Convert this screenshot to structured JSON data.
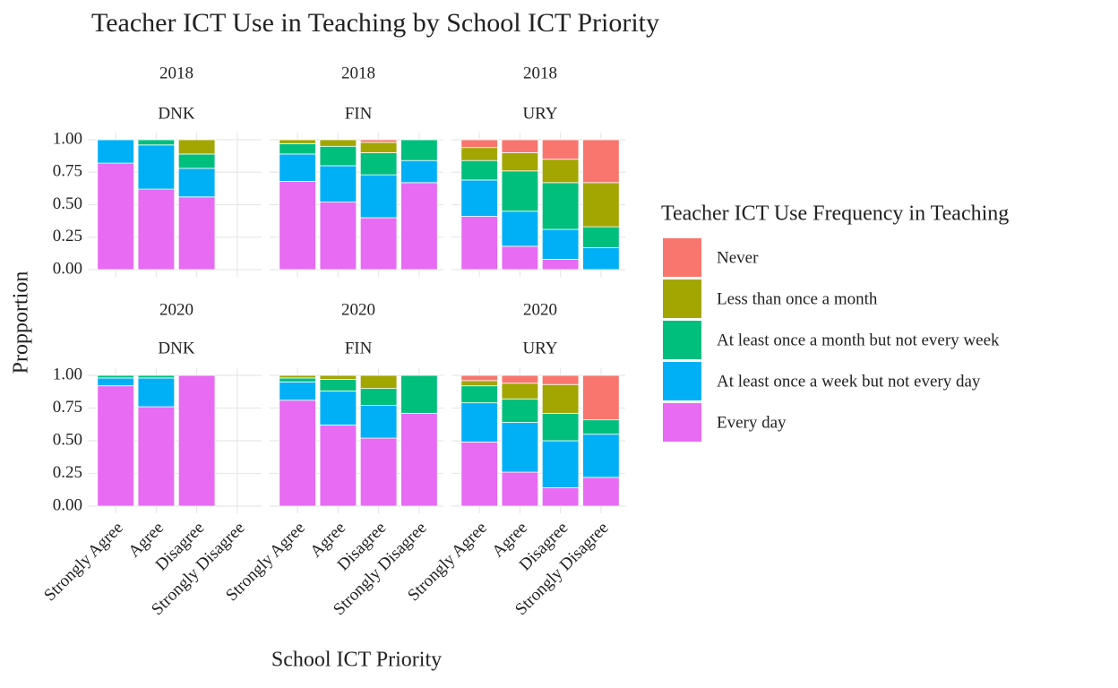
{
  "title": "Teacher ICT Use in Teaching by School ICT Priority",
  "x_label": "School ICT Priority",
  "y_label": "Propportion",
  "legend_title": "Teacher ICT Use Frequency in Teaching",
  "chart_data": [
    {
      "type": "bar",
      "stacked": true,
      "year": "2018",
      "country": "DNK",
      "categories": [
        "Strongly Agree",
        "Agree",
        "Disagree",
        "Strongly Disagree"
      ],
      "ylim": [
        0,
        1
      ],
      "yticks": [
        {
          "value": 0,
          "label": "0.00"
        },
        {
          "value": 0.25,
          "label": "0.25"
        },
        {
          "value": 0.5,
          "label": "0.50"
        },
        {
          "value": 0.75,
          "label": "0.75"
        },
        {
          "value": 1,
          "label": "1.00"
        }
      ],
      "grid": true,
      "series": [
        {
          "name": "Never",
          "color": "#F8766D",
          "values": [
            0,
            0,
            0,
            null
          ]
        },
        {
          "name": "Less than once a month",
          "color": "#A3A500",
          "values": [
            0,
            0,
            0.11,
            null
          ]
        },
        {
          "name": "At least once a month but not every week",
          "color": "#00BF7D",
          "values": [
            0,
            0.04,
            0.11,
            null
          ]
        },
        {
          "name": "At least once a week but not every day",
          "color": "#00B0F6",
          "values": [
            0.18,
            0.34,
            0.22,
            null
          ]
        },
        {
          "name": "Every day",
          "color": "#E76BF3",
          "values": [
            0.82,
            0.62,
            0.56,
            null
          ]
        }
      ]
    },
    {
      "type": "bar",
      "stacked": true,
      "year": "2018",
      "country": "FIN",
      "categories": [
        "Strongly Agree",
        "Agree",
        "Disagree",
        "Strongly Disagree"
      ],
      "ylim": [
        0,
        1
      ],
      "yticks": [
        {
          "value": 0,
          "label": "0.00"
        },
        {
          "value": 0.25,
          "label": "0.25"
        },
        {
          "value": 0.5,
          "label": "0.50"
        },
        {
          "value": 0.75,
          "label": "0.75"
        },
        {
          "value": 1,
          "label": "1.00"
        }
      ],
      "grid": true,
      "series": [
        {
          "name": "Never",
          "color": "#F8766D",
          "values": [
            0,
            0,
            0.02,
            0
          ]
        },
        {
          "name": "Less than once a month",
          "color": "#A3A500",
          "values": [
            0.03,
            0.05,
            0.08,
            0
          ]
        },
        {
          "name": "At least once a month but not every week",
          "color": "#00BF7D",
          "values": [
            0.08,
            0.15,
            0.17,
            0.16
          ]
        },
        {
          "name": "At least once a week but not every day",
          "color": "#00B0F6",
          "values": [
            0.21,
            0.28,
            0.33,
            0.17
          ]
        },
        {
          "name": "Every day",
          "color": "#E76BF3",
          "values": [
            0.68,
            0.52,
            0.4,
            0.67
          ]
        }
      ]
    },
    {
      "type": "bar",
      "stacked": true,
      "year": "2018",
      "country": "URY",
      "categories": [
        "Strongly Agree",
        "Agree",
        "Disagree",
        "Strongly Disagree"
      ],
      "ylim": [
        0,
        1
      ],
      "yticks": [
        {
          "value": 0,
          "label": "0.00"
        },
        {
          "value": 0.25,
          "label": "0.25"
        },
        {
          "value": 0.5,
          "label": "0.50"
        },
        {
          "value": 0.75,
          "label": "0.75"
        },
        {
          "value": 1,
          "label": "1.00"
        }
      ],
      "grid": true,
      "series": [
        {
          "name": "Never",
          "color": "#F8766D",
          "values": [
            0.06,
            0.1,
            0.15,
            0.33
          ]
        },
        {
          "name": "Less than once a month",
          "color": "#A3A500",
          "values": [
            0.1,
            0.14,
            0.18,
            0.34
          ]
        },
        {
          "name": "At least once a month but not every week",
          "color": "#00BF7D",
          "values": [
            0.15,
            0.31,
            0.36,
            0.16
          ]
        },
        {
          "name": "At least once a week but not every day",
          "color": "#00B0F6",
          "values": [
            0.28,
            0.27,
            0.23,
            0.17
          ]
        },
        {
          "name": "Every day",
          "color": "#E76BF3",
          "values": [
            0.41,
            0.18,
            0.08,
            0
          ]
        }
      ]
    },
    {
      "type": "bar",
      "stacked": true,
      "year": "2020",
      "country": "DNK",
      "categories": [
        "Strongly Agree",
        "Agree",
        "Disagree",
        "Strongly Disagree"
      ],
      "ylim": [
        0,
        1
      ],
      "yticks": [
        {
          "value": 0,
          "label": "0.00"
        },
        {
          "value": 0.25,
          "label": "0.25"
        },
        {
          "value": 0.5,
          "label": "0.50"
        },
        {
          "value": 0.75,
          "label": "0.75"
        },
        {
          "value": 1,
          "label": "1.00"
        }
      ],
      "grid": true,
      "series": [
        {
          "name": "Never",
          "color": "#F8766D",
          "values": [
            0,
            0,
            0,
            null
          ]
        },
        {
          "name": "Less than once a month",
          "color": "#A3A500",
          "values": [
            0,
            0,
            0,
            null
          ]
        },
        {
          "name": "At least once a month but not every week",
          "color": "#00BF7D",
          "values": [
            0.02,
            0.02,
            0,
            null
          ]
        },
        {
          "name": "At least once a week but not every day",
          "color": "#00B0F6",
          "values": [
            0.06,
            0.22,
            0,
            null
          ]
        },
        {
          "name": "Every day",
          "color": "#E76BF3",
          "values": [
            0.92,
            0.76,
            1.0,
            null
          ]
        }
      ]
    },
    {
      "type": "bar",
      "stacked": true,
      "year": "2020",
      "country": "FIN",
      "categories": [
        "Strongly Agree",
        "Agree",
        "Disagree",
        "Strongly Disagree"
      ],
      "ylim": [
        0,
        1
      ],
      "yticks": [
        {
          "value": 0,
          "label": "0.00"
        },
        {
          "value": 0.25,
          "label": "0.25"
        },
        {
          "value": 0.5,
          "label": "0.50"
        },
        {
          "value": 0.75,
          "label": "0.75"
        },
        {
          "value": 1,
          "label": "1.00"
        }
      ],
      "grid": true,
      "series": [
        {
          "name": "Never",
          "color": "#F8766D",
          "values": [
            0,
            0,
            0,
            0
          ]
        },
        {
          "name": "Less than once a month",
          "color": "#A3A500",
          "values": [
            0.02,
            0.03,
            0.1,
            0
          ]
        },
        {
          "name": "At least once a month but not every week",
          "color": "#00BF7D",
          "values": [
            0.03,
            0.09,
            0.13,
            0.29
          ]
        },
        {
          "name": "At least once a week but not every day",
          "color": "#00B0F6",
          "values": [
            0.14,
            0.26,
            0.25,
            0
          ]
        },
        {
          "name": "Every day",
          "color": "#E76BF3",
          "values": [
            0.81,
            0.62,
            0.52,
            0.71
          ]
        }
      ]
    },
    {
      "type": "bar",
      "stacked": true,
      "year": "2020",
      "country": "URY",
      "categories": [
        "Strongly Agree",
        "Agree",
        "Disagree",
        "Strongly Disagree"
      ],
      "ylim": [
        0,
        1
      ],
      "yticks": [
        {
          "value": 0,
          "label": "0.00"
        },
        {
          "value": 0.25,
          "label": "0.25"
        },
        {
          "value": 0.5,
          "label": "0.50"
        },
        {
          "value": 0.75,
          "label": "0.75"
        },
        {
          "value": 1,
          "label": "1.00"
        }
      ],
      "grid": true,
      "series": [
        {
          "name": "Never",
          "color": "#F8766D",
          "values": [
            0.04,
            0.06,
            0.07,
            0.34
          ]
        },
        {
          "name": "Less than once a month",
          "color": "#A3A500",
          "values": [
            0.04,
            0.12,
            0.22,
            0
          ]
        },
        {
          "name": "At least once a month but not every week",
          "color": "#00BF7D",
          "values": [
            0.13,
            0.18,
            0.21,
            0.11
          ]
        },
        {
          "name": "At least once a week but not every day",
          "color": "#00B0F6",
          "values": [
            0.3,
            0.38,
            0.36,
            0.33
          ]
        },
        {
          "name": "Every day",
          "color": "#E76BF3",
          "values": [
            0.49,
            0.26,
            0.14,
            0.22
          ]
        }
      ]
    }
  ]
}
